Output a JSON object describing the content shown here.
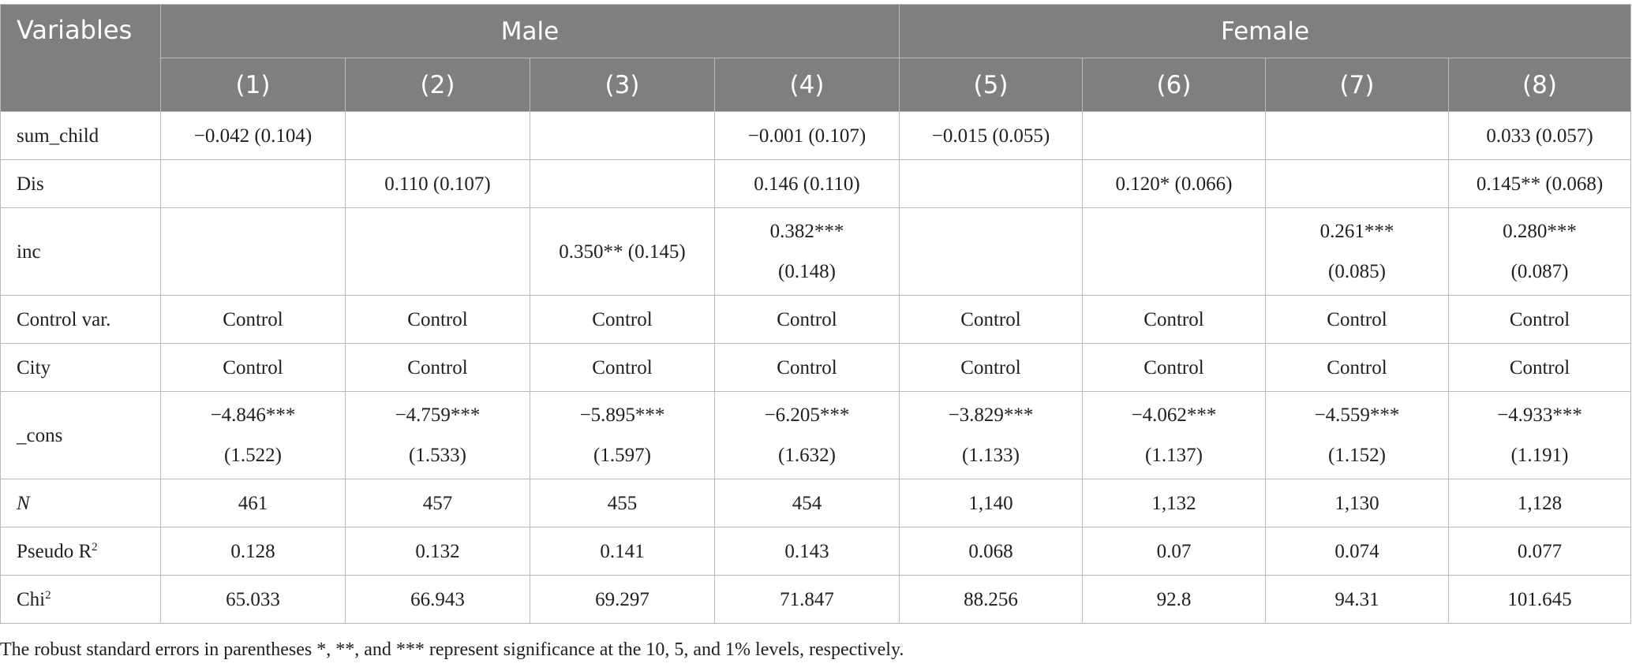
{
  "header": {
    "variables_label": "Variables",
    "groups": [
      "Male",
      "Female"
    ],
    "columns": [
      "(1)",
      "(2)",
      "(3)",
      "(4)",
      "(5)",
      "(6)",
      "(7)",
      "(8)"
    ]
  },
  "rows": [
    {
      "label": "sum_child",
      "cells": [
        "−0.042 (0.104)",
        "",
        "",
        "−0.001 (0.107)",
        "−0.015 (0.055)",
        "",
        "",
        "0.033 (0.057)"
      ]
    },
    {
      "label": "Dis",
      "cells": [
        "",
        "0.110 (0.107)",
        "",
        "0.146 (0.110)",
        "",
        "0.120* (0.066)",
        "",
        "0.145** (0.068)"
      ]
    },
    {
      "label": "inc",
      "cells": [
        "",
        "",
        "0.350** (0.145)",
        "0.382***\n(0.148)",
        "",
        "",
        "0.261***\n(0.085)",
        "0.280***\n(0.087)"
      ]
    },
    {
      "label": "Control var.",
      "cells": [
        "Control",
        "Control",
        "Control",
        "Control",
        "Control",
        "Control",
        "Control",
        "Control"
      ]
    },
    {
      "label": "City",
      "cells": [
        "Control",
        "Control",
        "Control",
        "Control",
        "Control",
        "Control",
        "Control",
        "Control"
      ]
    },
    {
      "label": "_cons",
      "cells": [
        "−4.846***\n(1.522)",
        "−4.759***\n(1.533)",
        "−5.895***\n(1.597)",
        "−6.205***\n(1.632)",
        "−3.829***\n(1.133)",
        "−4.062***\n(1.137)",
        "−4.559***\n(1.152)",
        "−4.933***\n(1.191)"
      ]
    },
    {
      "label": "N",
      "cells": [
        "461",
        "457",
        "455",
        "454",
        "1,140",
        "1,132",
        "1,130",
        "1,128"
      ]
    },
    {
      "label": "Pseudo R",
      "label_sup": "2",
      "cells": [
        "0.128",
        "0.132",
        "0.141",
        "0.143",
        "0.068",
        "0.07",
        "0.074",
        "0.077"
      ]
    },
    {
      "label": "Chi",
      "label_sup": "2",
      "cells": [
        "65.033",
        "66.943",
        "69.297",
        "71.847",
        "88.256",
        "92.8",
        "94.31",
        "101.645"
      ]
    }
  ],
  "note": "The robust standard errors in parentheses *, **, and *** represent significance at the 10, 5, and 1% levels, respectively."
}
